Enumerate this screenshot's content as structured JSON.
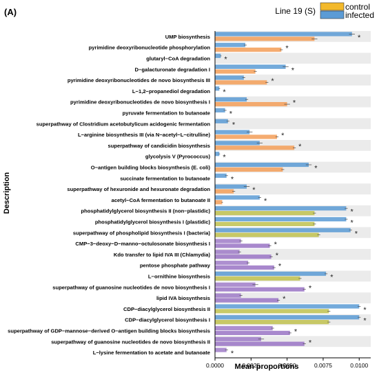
{
  "panel_label": "(A)",
  "colors": {
    "control": "#F3B92B",
    "infected": "#5B9BD5",
    "row_stripe": "#EBEBEB",
    "axis": "#000000",
    "group_colors": [
      "#F4A361",
      "#C3C458",
      "#9F7BC8"
    ]
  },
  "chart_data": {
    "type": "bar",
    "orientation": "horizontal",
    "legend": {
      "title": "Line 19 (S)",
      "entries": [
        "control",
        "infected"
      ],
      "placement": "top-right"
    },
    "ylabel": "Description",
    "xlabel": "Mean proportions",
    "xlim": [
      0,
      0.0108
    ],
    "xticks": [
      "0.0000",
      "0.0025",
      "0.0050",
      "0.0075",
      "0.0100"
    ],
    "xtick_values": [
      0,
      0.0025,
      0.005,
      0.0075,
      0.01
    ],
    "grid": false,
    "significance_marker": "*",
    "categories": [
      "UMP biosynthesis",
      "pyrimidine deoxyribonucleotide phosphorylation",
      "glutaryl−CoA degradation",
      "D−galacturonate degradation I",
      "pyrimidine deoxyribonucleotides de novo biosynthesis III",
      "L−1,2−propanediol degradation",
      "pyrimidine deoxyribonucleotides de novo biosynthesis I",
      "pyruvate fermentation to butanoate",
      "superpathway of Clostridium acetobutylicum acidogenic fermentation",
      "L−arginine biosynthesis III (via N−acetyl−L−citrulline)",
      "superpathway of candicidin biosynthesis",
      "glycolysis V (Pyrococcus)",
      "O−antigen building blocks biosynthesis (E. coli)",
      "succinate fermentation to butanoate",
      "superpathway of hexuronide and hexuronate degradation",
      "acetyl−CoA fermentation to butanoate II",
      "phosphatidylglycerol biosynthesis II (non−plastidic)",
      "phosphatidylglycerol biosynthesis I (plastidic)",
      "superpathway of phospholipid biosynthesis I (bacteria)",
      "CMP−3−deoxy−D−manno−octulosonate biosynthesis I",
      "Kdo transfer to lipid IVA III (Chlamydia)",
      "pentose phosphate pathway",
      "L−ornithine biosynthesis",
      "superpathway of guanosine nucleotides de novo biosynthesis I",
      "lipid IVA biosynthesis",
      "CDP−diacylglycerol biosynthesis II",
      "CDP−diacylglycerol biosynthesis I",
      "superpathway of GDP−mannose−derived O−antigen building blocks biosynthesis",
      "superpathway of guanosine nucleotides de novo biosynthesis II",
      "L−lysine fermentation to acetate and butanoate"
    ],
    "group": [
      0,
      0,
      0,
      0,
      0,
      0,
      0,
      0,
      0,
      0,
      0,
      0,
      0,
      0,
      0,
      0,
      1,
      1,
      1,
      2,
      2,
      2,
      1,
      2,
      2,
      1,
      1,
      2,
      2,
      2
    ],
    "series": [
      {
        "name": "infected",
        "values": [
          0.0095,
          0.0021,
          0.0004,
          0.0049,
          0.002,
          0.0003,
          0.0022,
          0.0007,
          0.0009,
          0.0024,
          0.0031,
          0.0003,
          0.0065,
          0.0008,
          0.0022,
          0.0031,
          0.0091,
          0.0091,
          0.0094,
          0.0018,
          0.0017,
          0.0023,
          0.0077,
          0.0028,
          0.0018,
          0.01,
          0.01,
          0.004,
          0.0032,
          0.0008
        ],
        "errors": [
          0.0002,
          0.0001,
          5e-05,
          0.0002,
          0.0001,
          5e-05,
          0.0001,
          0.0001,
          0.0001,
          0.0002,
          0.0002,
          5e-05,
          0.0002,
          0.0001,
          0.0002,
          0.0001,
          0.0001,
          0.0001,
          0.0001,
          0.0001,
          0.0001,
          0.0001,
          0.0001,
          0.0002,
          0.0001,
          0.0001,
          0.0001,
          0.0001,
          0.0002,
          0.0001
        ]
      },
      {
        "name": "control",
        "values": [
          0.0069,
          0.0046,
          0.0,
          0.0028,
          0.0036,
          0.0,
          0.005,
          0.0,
          0.0,
          0.0043,
          0.0055,
          0.0,
          0.0047,
          0.0,
          0.0013,
          0.0005,
          0.0069,
          0.0069,
          0.0072,
          0.0038,
          0.0039,
          0.0041,
          0.0059,
          0.0062,
          0.0044,
          0.0079,
          0.0079,
          0.0052,
          0.0062,
          0.0
        ],
        "errors": [
          0.0002,
          0.0001,
          0,
          0.0001,
          0.0001,
          0,
          0.0002,
          0,
          0,
          0.0001,
          0.0001,
          0,
          0.0001,
          0,
          0.0001,
          5e-05,
          0.0001,
          0.0001,
          0.0001,
          0.0001,
          0.0001,
          0.0001,
          0.0001,
          0.0001,
          0.0001,
          0.0001,
          0.0001,
          0.0001,
          0.0001,
          0
        ]
      }
    ]
  }
}
